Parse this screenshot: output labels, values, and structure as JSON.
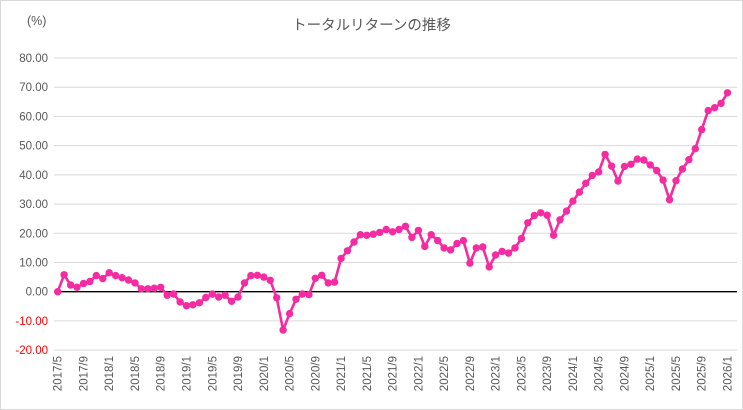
{
  "chart": {
    "title": "トータルリターンの推移",
    "unit_label": "(%)"
  },
  "chart_data": {
    "type": "line",
    "title": "トータルリターンの推移",
    "xlabel": "",
    "ylabel": "(%)",
    "ylim": [
      -20,
      80
    ],
    "y_tick_step": 10,
    "y_tick_labels": [
      "80.00",
      "70.00",
      "60.00",
      "50.00",
      "40.00",
      "30.00",
      "20.00",
      "10.00",
      "0.00",
      "-10.00",
      "-20.00"
    ],
    "x_tick_interval": 4,
    "x_tick_labels": [
      "2017/5",
      "2017/9",
      "2018/1",
      "2018/5",
      "2018/9",
      "2019/1",
      "2019/5",
      "2019/9",
      "2020/1",
      "2020/5",
      "2020/9",
      "2021/1",
      "2021/5",
      "2021/9",
      "2022/1",
      "2022/5",
      "2022/9",
      "2023/1",
      "2023/5",
      "2023/9",
      "2024/1",
      "2024/5",
      "2024/9",
      "2025/1",
      "2025/5",
      "2025/9",
      "2026/1"
    ],
    "grid": true,
    "legend_position": "none",
    "line_color": "#F42BA1",
    "grid_color": "#D9D9D9",
    "zero_line_color": "#000000",
    "axis_text_color": "#595959",
    "negative_label_color": "#FF0000",
    "x": [
      "2017/5",
      "2017/6",
      "2017/7",
      "2017/8",
      "2017/9",
      "2017/10",
      "2017/11",
      "2017/12",
      "2018/1",
      "2018/2",
      "2018/3",
      "2018/4",
      "2018/5",
      "2018/6",
      "2018/7",
      "2018/8",
      "2018/9",
      "2018/10",
      "2018/11",
      "2018/12",
      "2019/1",
      "2019/2",
      "2019/3",
      "2019/4",
      "2019/5",
      "2019/6",
      "2019/7",
      "2019/8",
      "2019/9",
      "2019/10",
      "2019/11",
      "2019/12",
      "2020/1",
      "2020/2",
      "2020/3",
      "2020/4",
      "2020/5",
      "2020/6",
      "2020/7",
      "2020/8",
      "2020/9",
      "2020/10",
      "2020/11",
      "2020/12",
      "2021/1",
      "2021/2",
      "2021/3",
      "2021/4",
      "2021/5",
      "2021/6",
      "2021/7",
      "2021/8",
      "2021/9",
      "2021/10",
      "2021/11",
      "2021/12",
      "2022/1",
      "2022/2",
      "2022/3",
      "2022/4",
      "2022/5",
      "2022/6",
      "2022/7",
      "2022/8",
      "2022/9",
      "2022/10",
      "2022/11",
      "2022/12",
      "2023/1",
      "2023/2",
      "2023/3",
      "2023/4",
      "2023/5",
      "2023/6",
      "2023/7",
      "2023/8",
      "2023/9",
      "2023/10",
      "2023/11",
      "2023/12",
      "2024/1",
      "2024/2",
      "2024/3",
      "2024/4",
      "2024/5",
      "2024/6",
      "2024/7",
      "2024/8",
      "2024/9",
      "2024/10",
      "2024/11",
      "2024/12",
      "2025/1",
      "2025/2",
      "2025/3",
      "2025/4",
      "2025/5",
      "2025/6",
      "2025/7",
      "2025/8",
      "2025/9",
      "2025/10",
      "2025/11",
      "2025/12",
      "2026/1"
    ],
    "values": [
      0.0,
      5.8,
      2.3,
      1.5,
      2.8,
      3.5,
      5.5,
      4.5,
      6.5,
      5.5,
      4.8,
      4.0,
      3.0,
      1.0,
      1.0,
      1.2,
      1.5,
      -1.2,
      -0.8,
      -3.5,
      -4.8,
      -4.5,
      -3.8,
      -2.0,
      -0.8,
      -1.8,
      -1.2,
      -3.3,
      -1.8,
      3.0,
      5.5,
      5.6,
      5.0,
      3.9,
      -2.1,
      -13.1,
      -7.5,
      -2.6,
      -0.8,
      -1.0,
      4.6,
      5.6,
      3.0,
      3.3,
      11.4,
      14.0,
      17.0,
      19.5,
      19.3,
      19.7,
      20.3,
      21.3,
      20.5,
      21.3,
      22.4,
      18.6,
      21.0,
      15.5,
      19.5,
      17.5,
      15.0,
      14.3,
      16.5,
      17.5,
      9.8,
      15.0,
      15.3,
      8.5,
      12.6,
      13.8,
      13.2,
      15.0,
      18.2,
      23.6,
      26.1,
      27.0,
      26.2,
      19.3,
      24.6,
      27.6,
      31.0,
      34.1,
      37.1,
      39.8,
      41.0,
      47.0,
      43.0,
      37.9,
      42.9,
      43.6,
      45.4,
      45.1,
      43.4,
      41.5,
      38.2,
      31.5,
      38.0,
      42.0,
      45.2,
      49.0,
      55.5,
      62.0,
      63.0,
      64.5,
      68.1
    ]
  }
}
